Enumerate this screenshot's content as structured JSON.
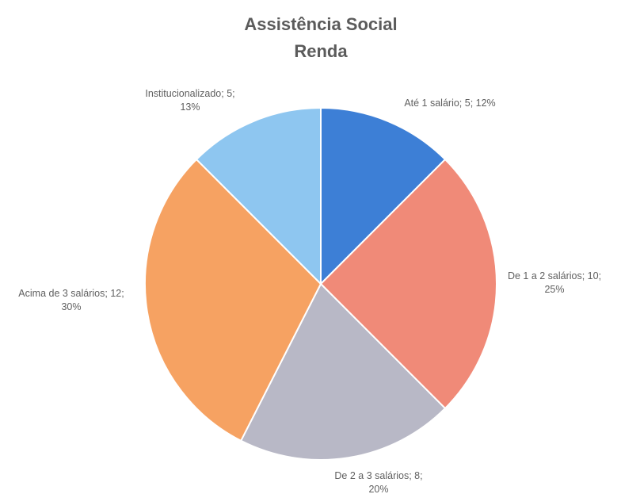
{
  "chart_data": {
    "type": "pie",
    "title": "Assistência Social",
    "subtitle": "Renda",
    "slices": [
      {
        "category": "Até 1 salário",
        "value": 5,
        "percent": "12%",
        "label_line1": "Até 1 salário; 5; 12%",
        "label_line2": "",
        "color": "#3d7fd6"
      },
      {
        "category": "De 1 a 2 salários",
        "value": 10,
        "percent": "25%",
        "label_line1": "De 1 a 2 salários; 10;",
        "label_line2": "25%",
        "color": "#f08a78"
      },
      {
        "category": "De 2 a 3 salários",
        "value": 8,
        "percent": "20%",
        "label_line1": "De 2 a 3 salários; 8;",
        "label_line2": "20%",
        "color": "#b8b8c6"
      },
      {
        "category": "Acima de 3 salários",
        "value": 12,
        "percent": "30%",
        "label_line1": "Acima de 3 salários; 12;",
        "label_line2": "30%",
        "color": "#f6a262"
      },
      {
        "category": "Institucionalizado",
        "value": 5,
        "percent": "13%",
        "label_line1": "Institucionalizado; 5;",
        "label_line2": "13%",
        "color": "#8ec6f0"
      }
    ],
    "legend": "none",
    "data_labels": "outside"
  }
}
